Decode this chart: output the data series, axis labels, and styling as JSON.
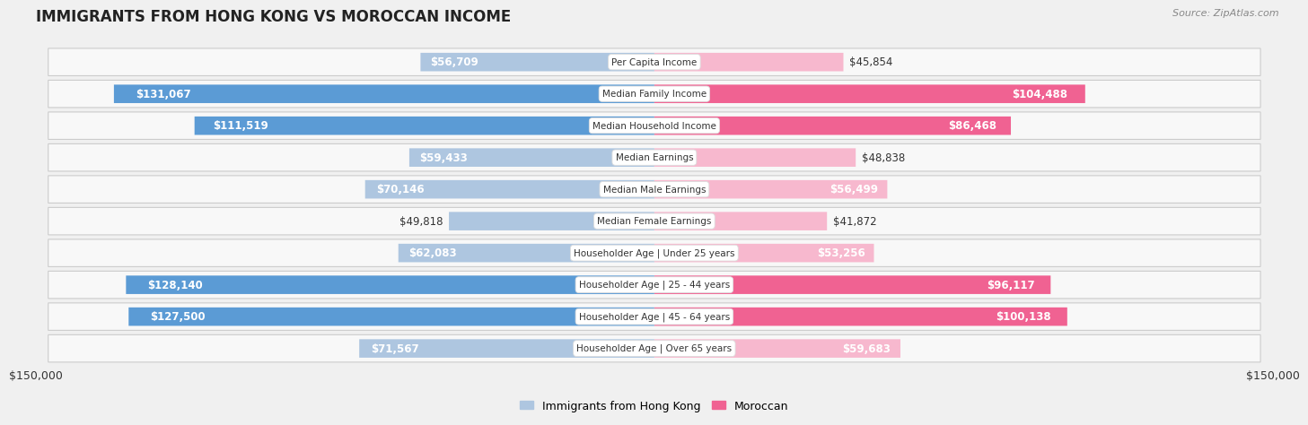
{
  "title": "IMMIGRANTS FROM HONG KONG VS MOROCCAN INCOME",
  "source": "Source: ZipAtlas.com",
  "categories": [
    "Per Capita Income",
    "Median Family Income",
    "Median Household Income",
    "Median Earnings",
    "Median Male Earnings",
    "Median Female Earnings",
    "Householder Age | Under 25 years",
    "Householder Age | 25 - 44 years",
    "Householder Age | 45 - 64 years",
    "Householder Age | Over 65 years"
  ],
  "hk_values": [
    56709,
    131067,
    111519,
    59433,
    70146,
    49818,
    62083,
    128140,
    127500,
    71567
  ],
  "moroccan_values": [
    45854,
    104488,
    86468,
    48838,
    56499,
    41872,
    53256,
    96117,
    100138,
    59683
  ],
  "hk_color_light": "#aec6e0",
  "hk_color_dark": "#5b9bd5",
  "moroccan_color_light": "#f7b8ce",
  "moroccan_color_dark": "#f06292",
  "hk_label": "Immigrants from Hong Kong",
  "moroccan_label": "Moroccan",
  "xlim": 150000,
  "x_tick_label_left": "$150,000",
  "x_tick_label_right": "$150,000",
  "background_color": "#f0f0f0",
  "row_color": "#f8f8f8",
  "bar_height": 0.58,
  "label_fontsize": 8.5,
  "title_fontsize": 12,
  "source_fontsize": 8,
  "category_fontsize": 7.5,
  "threshold_inside": 50000,
  "hk_dark_threshold": 100000,
  "moroccan_dark_threshold": 80000
}
